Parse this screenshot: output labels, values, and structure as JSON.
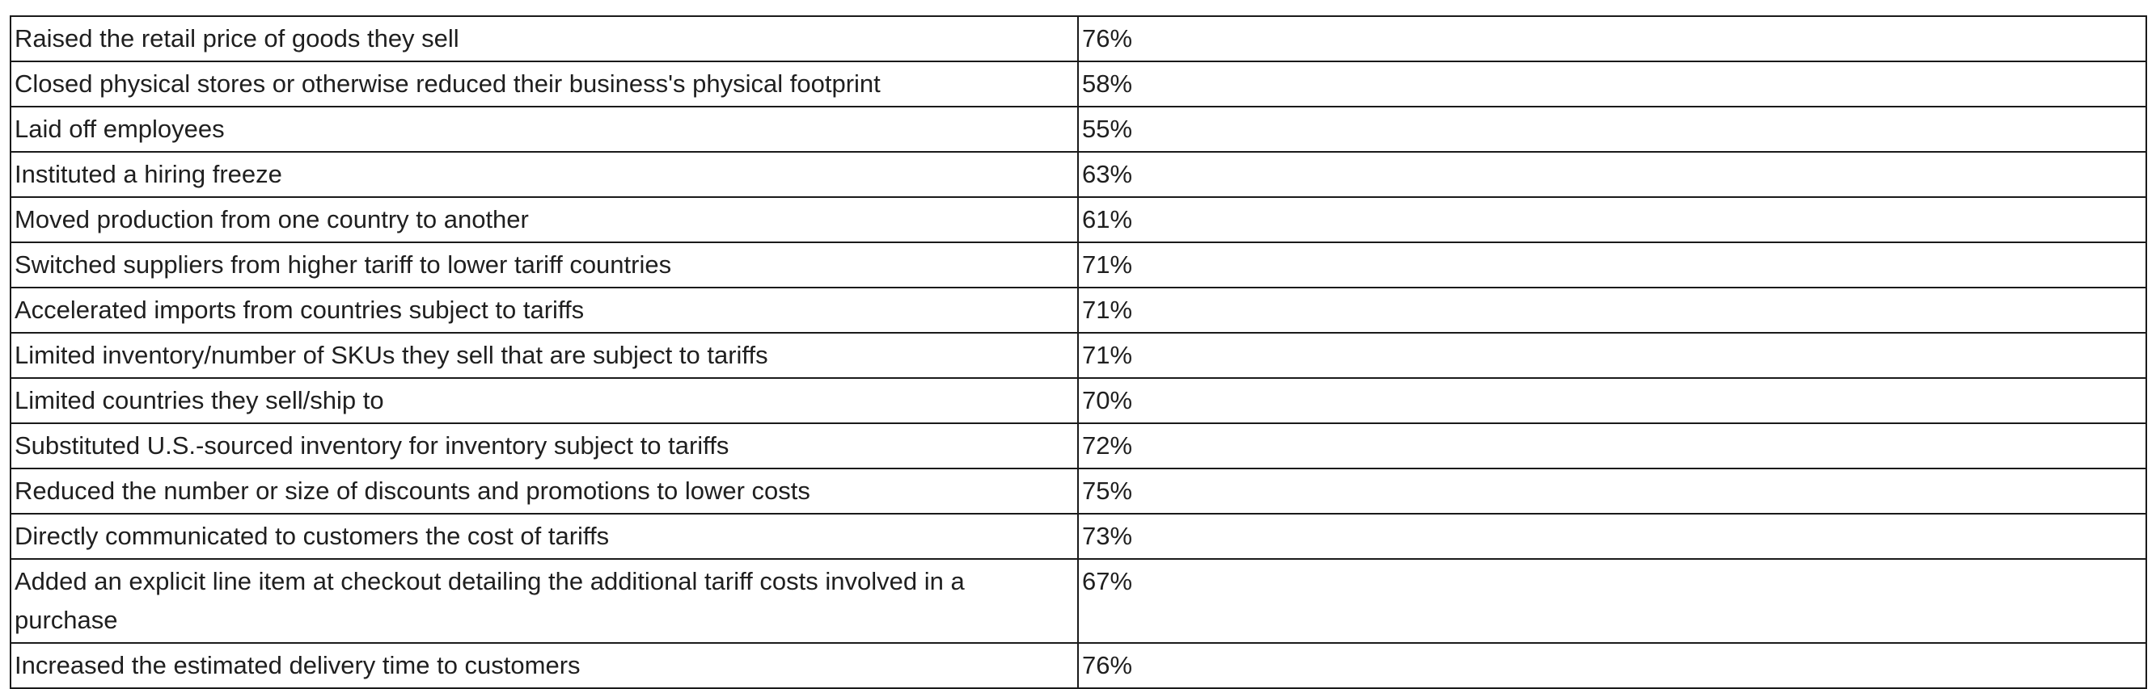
{
  "table": {
    "rows": [
      {
        "label": "Raised the retail price of goods they sell",
        "value": "76%"
      },
      {
        "label": "Closed physical stores or otherwise reduced their business's physical footprint",
        "value": "58%"
      },
      {
        "label": "Laid off employees",
        "value": "55%"
      },
      {
        "label": "Instituted a hiring freeze",
        "value": "63%"
      },
      {
        "label": "Moved production from one country to another",
        "value": "61%"
      },
      {
        "label": "Switched suppliers from higher tariff to lower tariff countries",
        "value": "71%"
      },
      {
        "label": "Accelerated imports from countries subject to tariffs",
        "value": "71%"
      },
      {
        "label": "Limited inventory/number of SKUs they sell that are subject to tariffs",
        "value": "71%"
      },
      {
        "label": "Limited countries they sell/ship to",
        "value": "70%"
      },
      {
        "label": "Substituted U.S.-sourced inventory for inventory subject to tariffs",
        "value": "72%"
      },
      {
        "label": "Reduced the number or size of discounts and promotions to lower costs",
        "value": "75%"
      },
      {
        "label": "Directly communicated to customers the cost of tariffs",
        "value": "73%"
      },
      {
        "label": "Added an explicit line item at checkout detailing the additional tariff costs involved in a purchase",
        "value": "67%"
      },
      {
        "label": "Increased the estimated delivery time to customers",
        "value": "76%"
      }
    ]
  }
}
